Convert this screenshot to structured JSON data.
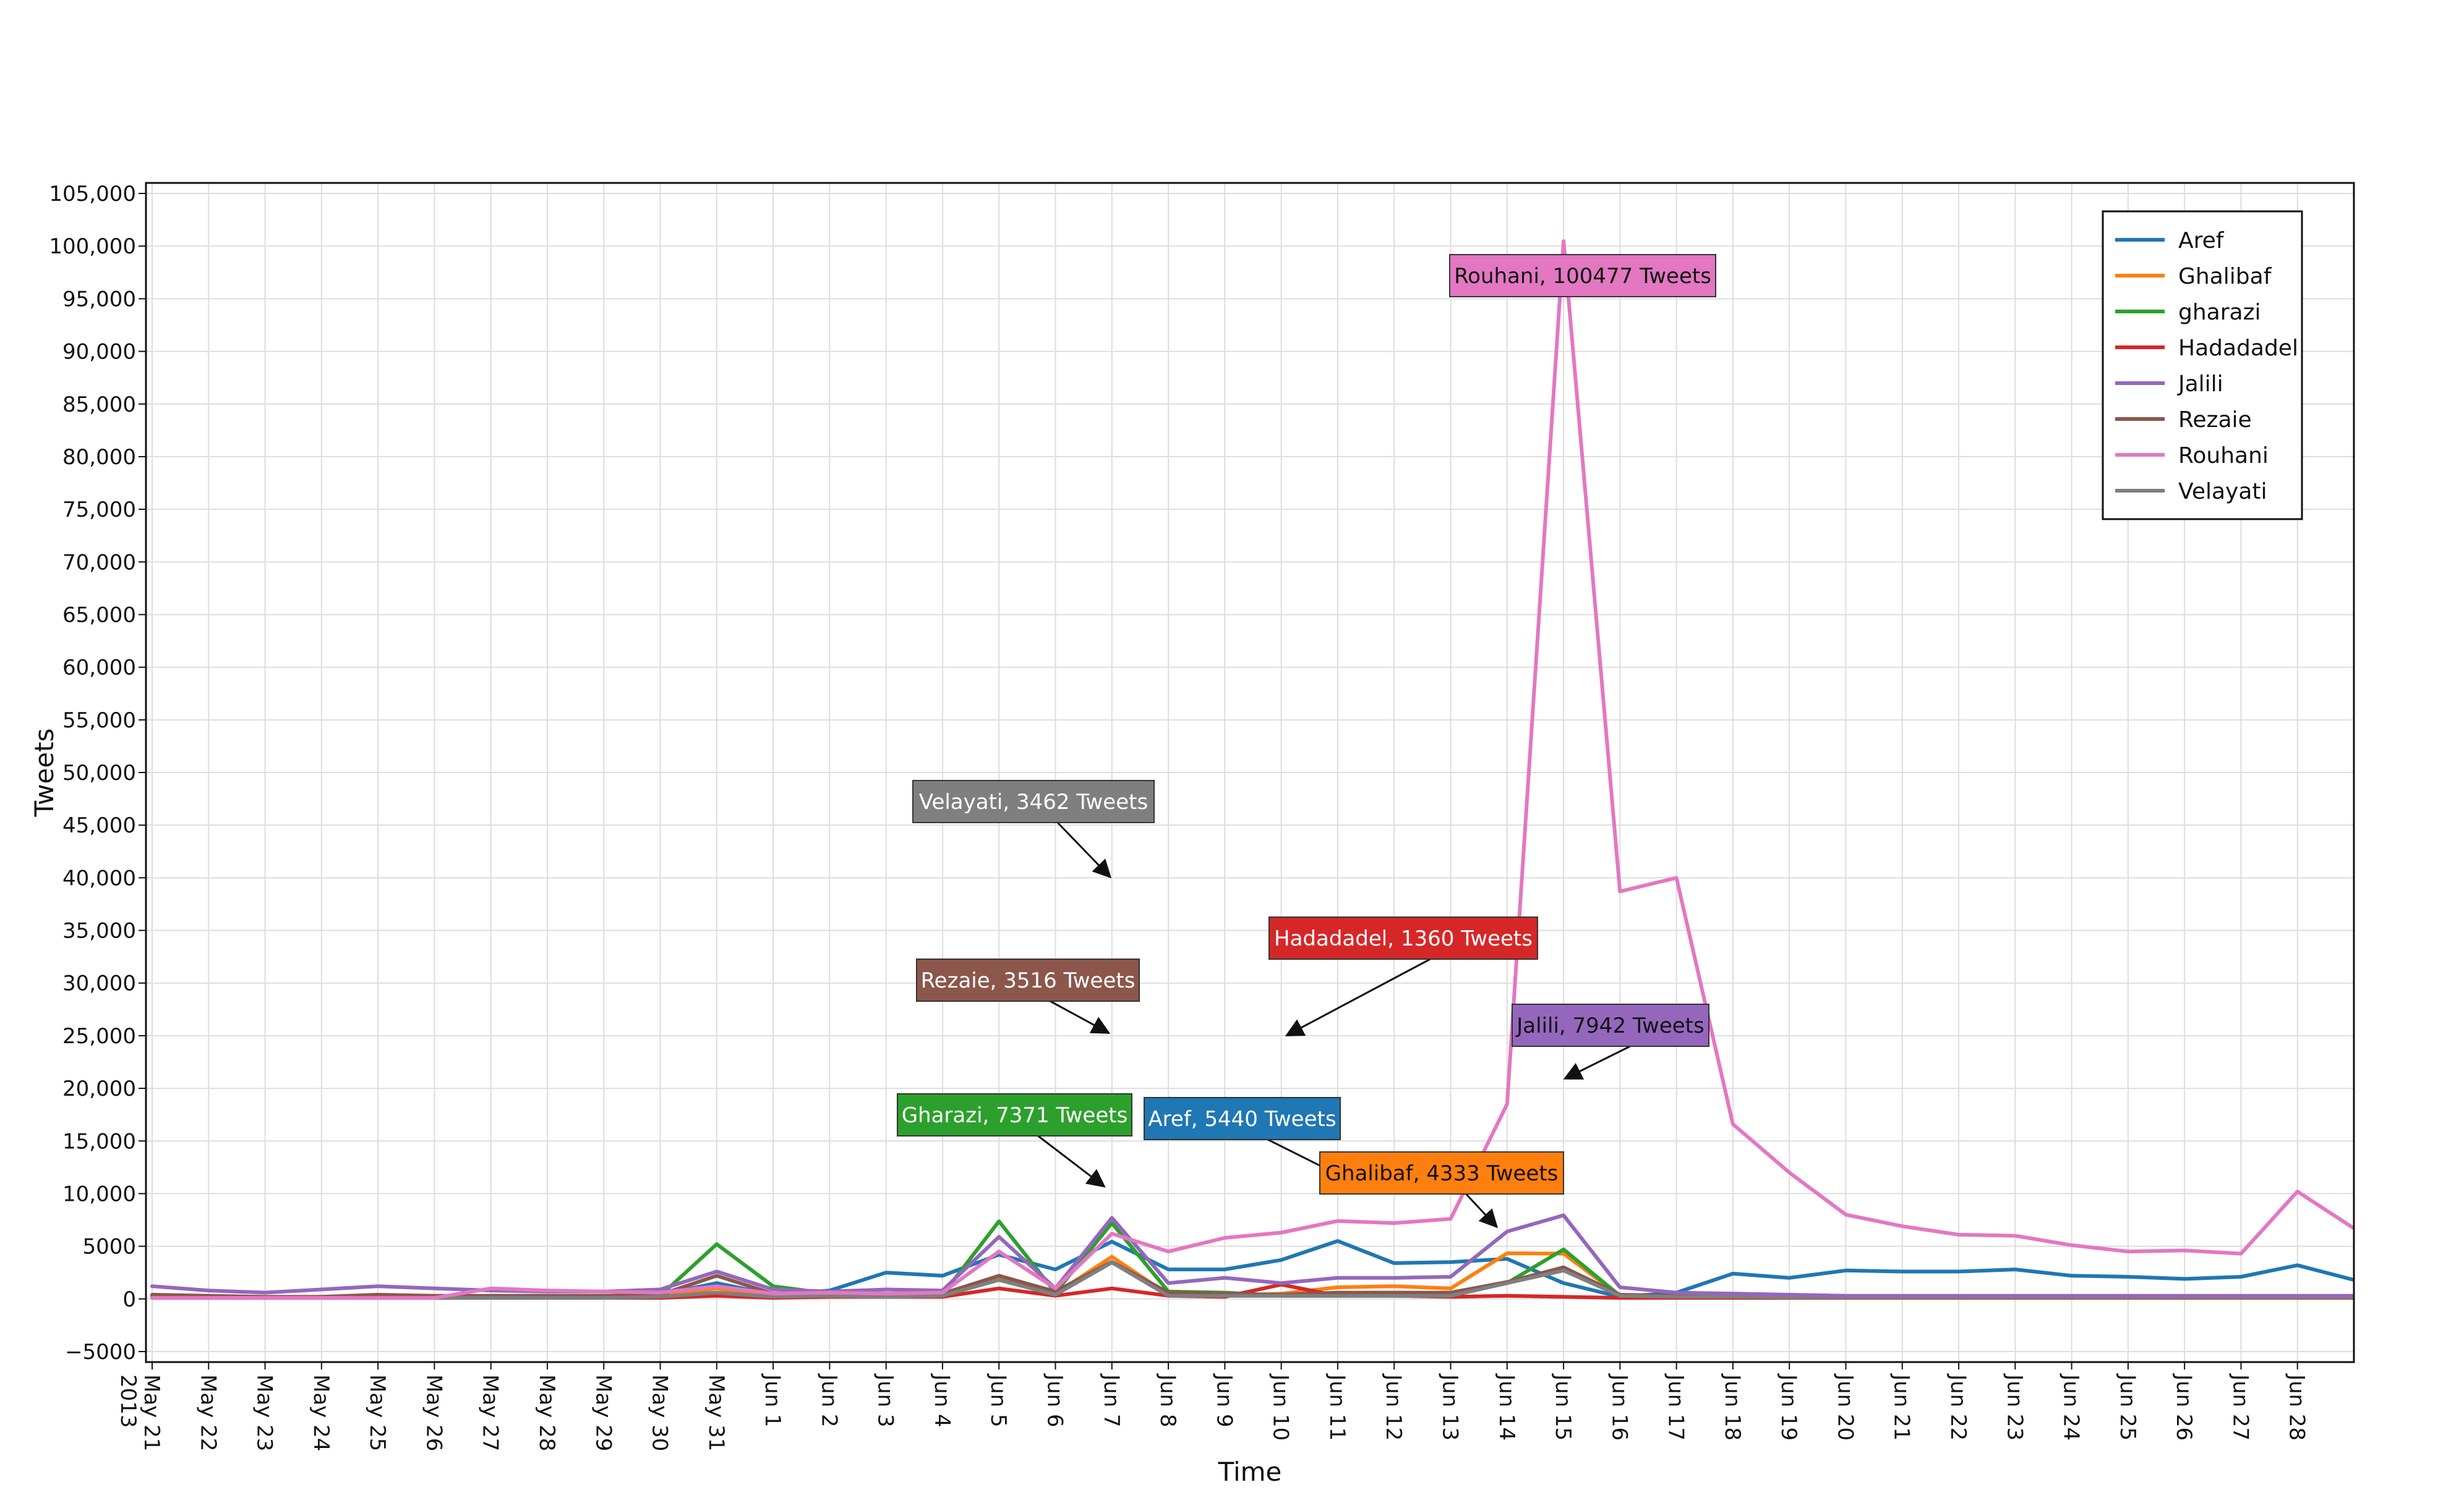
{
  "chart_data": {
    "type": "line",
    "title": "",
    "xlabel": "Time",
    "ylabel": "Tweets",
    "ylim": [
      -6000,
      106000
    ],
    "yticks": [
      -5000,
      0,
      5000,
      10000,
      15000,
      20000,
      25000,
      30000,
      35000,
      40000,
      45000,
      50000,
      55000,
      60000,
      65000,
      70000,
      75000,
      80000,
      85000,
      90000,
      95000,
      100000,
      105000
    ],
    "ytick_labels": [
      "−5000",
      "0",
      "5000",
      "10,000",
      "15,000",
      "20,000",
      "25,000",
      "30,000",
      "35,000",
      "40,000",
      "45,000",
      "50,000",
      "55,000",
      "60,000",
      "65,000",
      "70,000",
      "75,000",
      "80,000",
      "85,000",
      "90,000",
      "95,000",
      "100,000",
      "105,000"
    ],
    "x": [
      "2013-05-21",
      "2013-05-22",
      "2013-05-23",
      "2013-05-24",
      "2013-05-25",
      "2013-05-26",
      "2013-05-27",
      "2013-05-28",
      "2013-05-29",
      "2013-05-30",
      "2013-05-31",
      "2013-06-01",
      "2013-06-02",
      "2013-06-03",
      "2013-06-04",
      "2013-06-05",
      "2013-06-06",
      "2013-06-07",
      "2013-06-08",
      "2013-06-09",
      "2013-06-10",
      "2013-06-11",
      "2013-06-12",
      "2013-06-13",
      "2013-06-14",
      "2013-06-15",
      "2013-06-16",
      "2013-06-17",
      "2013-06-18",
      "2013-06-19",
      "2013-06-20",
      "2013-06-21",
      "2013-06-22",
      "2013-06-23",
      "2013-06-24",
      "2013-06-25",
      "2013-06-26",
      "2013-06-27",
      "2013-06-28",
      "2013-06-29"
    ],
    "xtick_labels": [
      "May 21",
      "May 22",
      "May 23",
      "May 24",
      "May 25",
      "May 26",
      "May 27",
      "May 28",
      "May 29",
      "May 30",
      "May 31",
      "Jun 1",
      "Jun 2",
      "Jun 3",
      "Jun 4",
      "Jun 5",
      "Jun 6",
      "Jun 7",
      "Jun 8",
      "Jun 9",
      "Jun 10",
      "Jun 11",
      "Jun 12",
      "Jun 13",
      "Jun 14",
      "Jun 15",
      "Jun 16",
      "Jun 17",
      "Jun 18",
      "Jun 19",
      "Jun 20",
      "Jun 21",
      "Jun 22",
      "Jun 23",
      "Jun 24",
      "Jun 25",
      "Jun 26",
      "Jun 27",
      "Jun 28"
    ],
    "xtick_sublabel": "2013",
    "grid": true,
    "legend_position": "top-right",
    "series": [
      {
        "name": "Aref",
        "color": "#1f77b4",
        "values": [
          300,
          200,
          150,
          200,
          250,
          200,
          300,
          300,
          300,
          400,
          1500,
          400,
          800,
          2500,
          2200,
          4200,
          2800,
          5440,
          2800,
          2800,
          3700,
          5500,
          3400,
          3500,
          3800,
          1500,
          200,
          600,
          2400,
          2000,
          2700,
          2600,
          2600,
          2800,
          2200,
          2100,
          1900,
          2100,
          3200,
          1800
        ]
      },
      {
        "name": "Ghalibaf",
        "color": "#ff7f0e",
        "values": [
          100,
          100,
          100,
          100,
          100,
          100,
          100,
          100,
          100,
          200,
          1000,
          200,
          300,
          300,
          300,
          2000,
          500,
          4000,
          400,
          300,
          500,
          1100,
          1200,
          1000,
          4333,
          4300,
          300,
          200,
          200,
          200,
          200,
          150,
          150,
          150,
          150,
          150,
          150,
          150,
          150,
          150
        ]
      },
      {
        "name": "gharazi",
        "color": "#2ca02c",
        "values": [
          200,
          200,
          150,
          150,
          200,
          200,
          200,
          200,
          200,
          300,
          5200,
          1200,
          500,
          300,
          400,
          7371,
          600,
          7200,
          700,
          600,
          300,
          300,
          300,
          300,
          1500,
          4700,
          300,
          200,
          200,
          150,
          150,
          150,
          150,
          150,
          150,
          150,
          150,
          150,
          150,
          150
        ]
      },
      {
        "name": "Hadadadel",
        "color": "#d62728",
        "values": [
          100,
          100,
          100,
          100,
          100,
          100,
          100,
          100,
          100,
          100,
          300,
          100,
          200,
          200,
          200,
          1000,
          300,
          1000,
          300,
          200,
          1360,
          300,
          300,
          200,
          300,
          200,
          100,
          100,
          100,
          100,
          100,
          100,
          100,
          100,
          100,
          100,
          100,
          100,
          100,
          100
        ]
      },
      {
        "name": "Jalili",
        "color": "#9467bd",
        "values": [
          1200,
          800,
          600,
          900,
          1200,
          1000,
          800,
          700,
          700,
          900,
          2600,
          900,
          700,
          900,
          800,
          5900,
          1000,
          7700,
          1500,
          2000,
          1500,
          2000,
          2000,
          2100,
          6400,
          7942,
          1100,
          600,
          500,
          400,
          300,
          300,
          300,
          300,
          300,
          300,
          300,
          300,
          300,
          300
        ]
      },
      {
        "name": "Rezaie",
        "color": "#8c564b",
        "values": [
          400,
          300,
          200,
          200,
          400,
          300,
          300,
          300,
          300,
          400,
          2200,
          500,
          600,
          500,
          500,
          2200,
          700,
          3516,
          600,
          500,
          400,
          600,
          600,
          600,
          1600,
          3000,
          400,
          300,
          300,
          200,
          200,
          200,
          200,
          200,
          200,
          200,
          200,
          200,
          200,
          200
        ]
      },
      {
        "name": "Rouhani",
        "color": "#e377c2",
        "values": [
          100,
          100,
          100,
          100,
          100,
          100,
          1000,
          800,
          700,
          600,
          1200,
          500,
          600,
          500,
          600,
          4500,
          1000,
          6200,
          4500,
          5800,
          6300,
          7400,
          7200,
          7600,
          18500,
          100477,
          38700,
          40000,
          16600,
          12000,
          8000,
          6900,
          6100,
          6000,
          5100,
          4500,
          4600,
          4300,
          10200,
          6700
        ]
      },
      {
        "name": "Velayati",
        "color": "#7f7f7f",
        "values": [
          100,
          100,
          100,
          100,
          100,
          100,
          100,
          100,
          100,
          200,
          600,
          200,
          300,
          200,
          300,
          1800,
          400,
          3462,
          300,
          300,
          300,
          300,
          300,
          300,
          1500,
          2700,
          300,
          200,
          200,
          150,
          150,
          150,
          150,
          150,
          150,
          150,
          150,
          150,
          150,
          150
        ]
      }
    ],
    "annotations": [
      {
        "text": "Rouhani, 100477 Tweets",
        "series": "Rouhani",
        "x": "2013-06-15",
        "y": 100477,
        "bg": "#e377c2",
        "color": "#111111"
      },
      {
        "text": "Velayati, 3462 Tweets",
        "series": "Velayati",
        "x": "2013-06-07",
        "y": 3462,
        "bg": "#7f7f7f",
        "color": "#ffffff"
      },
      {
        "text": "Hadadadel, 1360 Tweets",
        "series": "Hadadadel",
        "x": "2013-06-10",
        "y": 1360,
        "bg": "#d62728",
        "color": "#ffffff"
      },
      {
        "text": "Rezaie, 3516 Tweets",
        "series": "Rezaie",
        "x": "2013-06-07",
        "y": 3516,
        "bg": "#8c564b",
        "color": "#ffffff"
      },
      {
        "text": "Jalili, 7942 Tweets",
        "series": "Jalili",
        "x": "2013-06-15",
        "y": 7942,
        "bg": "#9467bd",
        "color": "#111111"
      },
      {
        "text": "Gharazi, 7371 Tweets",
        "series": "gharazi",
        "x": "2013-06-05",
        "y": 7371,
        "bg": "#2ca02c",
        "color": "#ffffff"
      },
      {
        "text": "Aref, 5440 Tweets",
        "series": "Aref",
        "x": "2013-06-07",
        "y": 5440,
        "bg": "#1f77b4",
        "color": "#ffffff"
      },
      {
        "text": "Ghalibaf, 4333 Tweets",
        "series": "Ghalibaf",
        "x": "2013-06-14",
        "y": 4333,
        "bg": "#ff7f0e",
        "color": "#111111"
      }
    ]
  }
}
